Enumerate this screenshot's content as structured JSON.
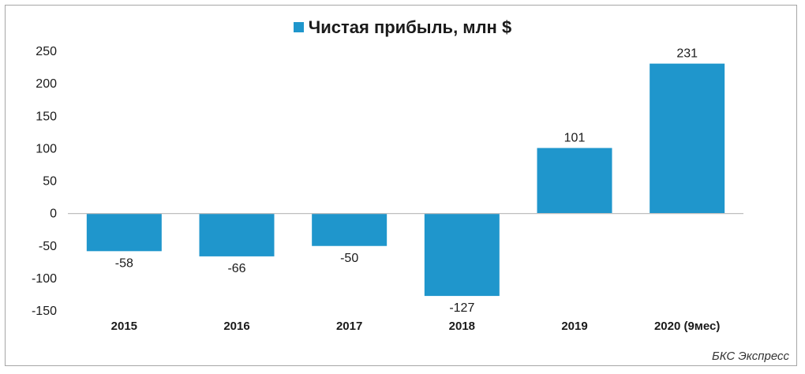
{
  "chart_data": {
    "type": "bar",
    "categories": [
      "2015",
      "2016",
      "2017",
      "2018",
      "2019",
      "2020 (9мес)"
    ],
    "series": [
      {
        "name": "Чистая прибыль, млн $",
        "values": [
          -58,
          -66,
          -50,
          -127,
          101,
          231
        ]
      }
    ],
    "data_labels": [
      "-58",
      "-66",
      "-50",
      "-127",
      "101",
      "231"
    ],
    "y_ticks": [
      "250",
      "200",
      "150",
      "100",
      "50",
      "0",
      "-50",
      "-100",
      "-150"
    ],
    "ylim": [
      -150,
      250
    ],
    "grid": false,
    "legend_position": "top-center",
    "bar_color": "#1f96cc"
  },
  "source": "БКС Экспресс"
}
